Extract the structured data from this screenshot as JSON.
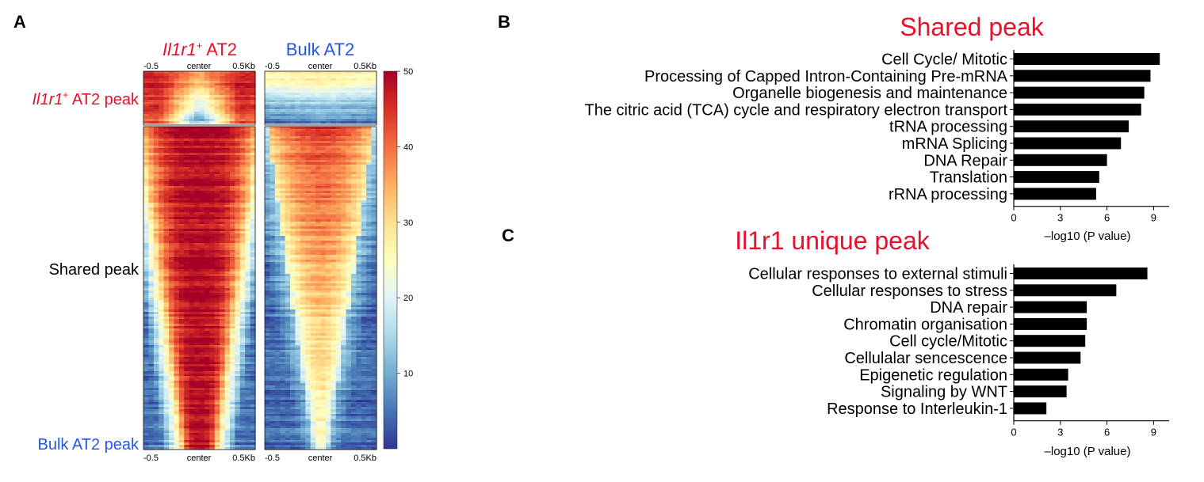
{
  "panel_labels": [
    "A",
    "B",
    "C"
  ],
  "heatmap": {
    "column_titles": [
      {
        "main": "Il1r1",
        "sup": "+",
        "suffix": " AT2",
        "color": "#e8102a"
      },
      {
        "main": "Bulk AT2",
        "color": "#2356e8"
      }
    ],
    "tick_labels_top": [
      "-0.5",
      "center",
      "0.5Kb"
    ],
    "tick_labels_bottom": [
      "-0.5",
      "center",
      "0.5Kb"
    ],
    "row_labels": [
      {
        "main": "Il1r1",
        "sup": "+",
        "suffix": " AT2 peak",
        "color": "#e8102a"
      },
      {
        "main": "Shared peak",
        "color": "#000000"
      },
      {
        "main": "Bulk AT2 peak",
        "color": "#2356e8"
      }
    ],
    "colorbar": {
      "ticks": [
        "50",
        "40",
        "30",
        "20",
        "10"
      ],
      "max": 50,
      "min": 0
    },
    "colors": {
      "high": "#a50026",
      "mid": "#ffffbf",
      "low": "#313695"
    }
  },
  "chart_data": [
    {
      "type": "bar",
      "orientation": "horizontal",
      "title": "Shared peak",
      "title_color": "#e8102a",
      "xlabel": "–log10 (P value)",
      "xticks": [
        "0",
        "3",
        "6",
        "9"
      ],
      "xlim": [
        0,
        10
      ],
      "categories": [
        "Cell Cycle/ Mitotic",
        "Processing of Capped Intron-Containing Pre-mRNA",
        "Organelle biogenesis and maintenance",
        "The citric acid (TCA) cycle and respiratory electron transport",
        "tRNA processing",
        "mRNA Splicing",
        "DNA Repair",
        "Translation",
        "rRNA processing"
      ],
      "values": [
        9.4,
        8.8,
        8.4,
        8.2,
        7.4,
        6.9,
        6.0,
        5.5,
        5.3
      ]
    },
    {
      "type": "bar",
      "orientation": "horizontal",
      "title": "Il1r1 unique peak",
      "title_color": "#e8102a",
      "xlabel": "–log10 (P value)",
      "xticks": [
        "0",
        "3",
        "6",
        "9"
      ],
      "xlim": [
        0,
        10
      ],
      "categories": [
        "Cellular responses to external stimuli",
        "Cellular responses to stress",
        "DNA repair",
        "Chromatin organisation",
        "Cell cycle/Mitotic",
        "Cellulalar sencescence",
        "Epigenetic regulation",
        "Signaling by WNT",
        "Response to Interleukin-1"
      ],
      "values": [
        8.6,
        6.6,
        4.7,
        4.7,
        4.6,
        4.3,
        3.5,
        3.4,
        2.1
      ]
    }
  ]
}
